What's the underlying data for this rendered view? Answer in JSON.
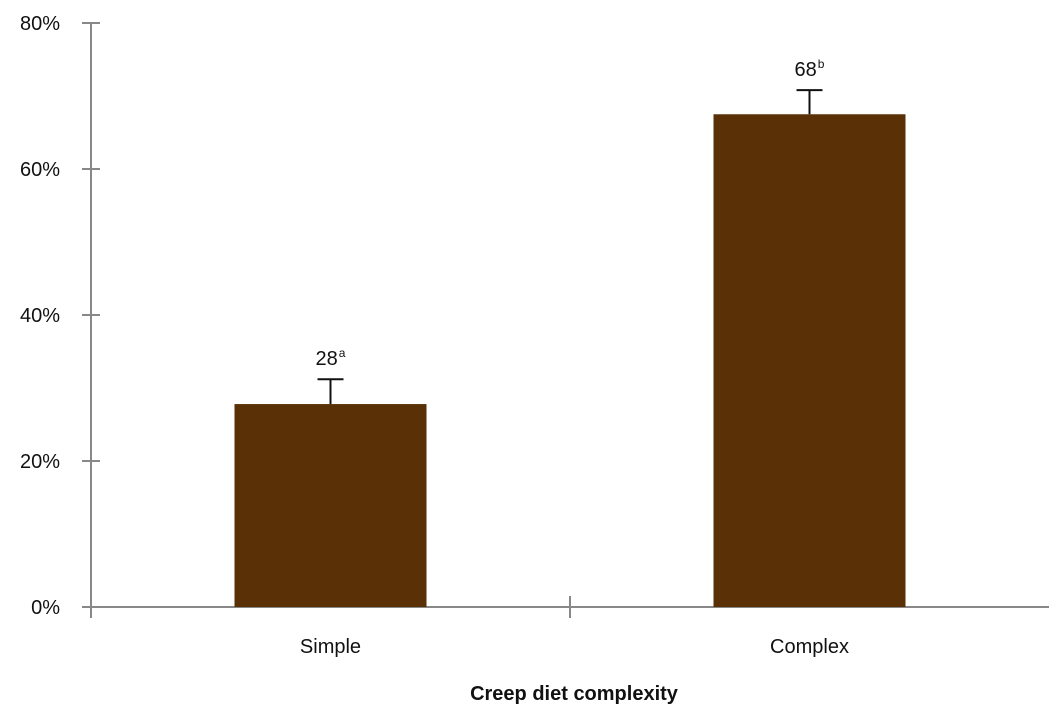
{
  "chart_data": {
    "type": "bar",
    "categories": [
      "Simple",
      "Complex"
    ],
    "values": [
      28,
      68
    ],
    "display_values": [
      27.8,
      67.5
    ],
    "error_upper": [
      31.2,
      70.8
    ],
    "data_labels": [
      {
        "value": "28",
        "superscript": "a"
      },
      {
        "value": "68",
        "superscript": "b"
      }
    ],
    "xlabel": "Creep diet complexity",
    "ylabel": "",
    "ylim": [
      0,
      80
    ],
    "yticks": [
      0,
      20,
      40,
      60,
      80
    ],
    "ytick_labels": [
      "0%",
      "20%",
      "40%",
      "60%",
      "80%"
    ],
    "grid": false,
    "legend": "none",
    "colors": {
      "bar": "#5a3006",
      "axis": "#888888",
      "error_bar": "#111111"
    }
  }
}
